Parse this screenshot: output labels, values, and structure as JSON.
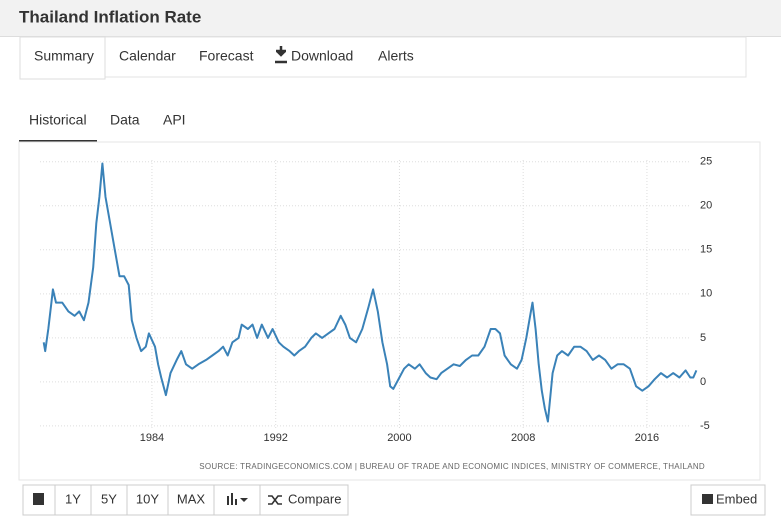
{
  "header": {
    "title": "Thailand Inflation Rate"
  },
  "tabs": [
    "Summary",
    "Calendar",
    "Forecast",
    "Download",
    "Alerts"
  ],
  "subtabs": [
    "Historical",
    "Data",
    "API"
  ],
  "chart_data": {
    "type": "line",
    "series": [
      {
        "name": "Thailand Inflation Rate",
        "color": "#3a82b8",
        "x": [
          1977.0,
          1977.1,
          1977.3,
          1977.5,
          1977.6,
          1977.8,
          1978.2,
          1978.6,
          1979.0,
          1979.3,
          1979.6,
          1979.9,
          1980.2,
          1980.4,
          1980.6,
          1980.8,
          1981.0,
          1981.2,
          1981.4,
          1981.6,
          1981.9,
          1982.2,
          1982.5,
          1982.7,
          1983.0,
          1983.3,
          1983.6,
          1983.8,
          1984.2,
          1984.4,
          1984.6,
          1984.9,
          1985.2,
          1985.6,
          1985.9,
          1986.2,
          1986.6,
          1987.0,
          1987.5,
          1987.9,
          1988.3,
          1988.6,
          1988.9,
          1989.2,
          1989.6,
          1989.8,
          1990.2,
          1990.5,
          1990.8,
          1991.1,
          1991.5,
          1991.8,
          1992.2,
          1992.5,
          1992.9,
          1993.2,
          1993.5,
          1993.9,
          1994.3,
          1994.6,
          1995.0,
          1995.4,
          1995.8,
          1996.2,
          1996.5,
          1996.8,
          1997.2,
          1997.6,
          1998.0,
          1998.3,
          1998.6,
          1998.9,
          1999.2,
          1999.4,
          1999.6,
          2000.0,
          2000.3,
          2000.6,
          2001.0,
          2001.3,
          2001.7,
          2002.0,
          2002.4,
          2002.7,
          2003.1,
          2003.5,
          2003.9,
          2004.3,
          2004.7,
          2005.1,
          2005.5,
          2005.9,
          2006.2,
          2006.5,
          2006.8,
          2007.2,
          2007.6,
          2007.9,
          2008.2,
          2008.5,
          2008.6,
          2008.8,
          2009.0,
          2009.2,
          2009.4,
          2009.6,
          2009.9,
          2010.2,
          2010.5,
          2010.9,
          2011.3,
          2011.7,
          2012.1,
          2012.5,
          2012.9,
          2013.3,
          2013.7,
          2014.1,
          2014.5,
          2014.9,
          2015.3,
          2015.7,
          2016.1,
          2016.5,
          2016.9,
          2017.3,
          2017.7,
          2018.1,
          2018.5,
          2018.8,
          2019.0,
          2019.2
        ],
        "values": [
          4.5,
          3.5,
          6,
          9,
          10.5,
          9,
          9,
          8,
          7.5,
          8,
          7,
          9,
          13,
          18,
          21,
          24.8,
          21,
          19,
          17,
          15,
          12,
          12,
          11,
          7,
          5,
          3.5,
          4,
          5.5,
          4,
          2,
          0.5,
          -1.5,
          1,
          2.5,
          3.5,
          2,
          1.5,
          2,
          2.5,
          3,
          3.5,
          4,
          3,
          4.5,
          5,
          6.5,
          6,
          6.5,
          5,
          6.5,
          5,
          6,
          4.5,
          4,
          3.5,
          3,
          3.5,
          4,
          5,
          5.5,
          5,
          5.5,
          6,
          7.5,
          6.5,
          5,
          4.5,
          6,
          8.5,
          10.5,
          8,
          4.5,
          2,
          -0.5,
          -0.8,
          0.5,
          1.5,
          2,
          1.5,
          2,
          1,
          0.5,
          0.3,
          1,
          1.5,
          2,
          1.8,
          2.5,
          3,
          3,
          4,
          6,
          6,
          5.5,
          3,
          2,
          1.5,
          2.5,
          5,
          8,
          9,
          6,
          2,
          -1,
          -3,
          -4.5,
          1,
          3,
          3.5,
          3,
          4,
          4,
          3.5,
          2.5,
          3,
          2.5,
          1.5,
          2,
          2,
          1.5,
          -0.5,
          -1,
          -0.5,
          0.3,
          1,
          0.5,
          1,
          0.5,
          1.3,
          0.5,
          0.5,
          1.3
        ]
      }
    ],
    "xlim": [
      1975.47,
      2019.43
    ],
    "xticks": [
      1984,
      1992,
      2000,
      2008,
      2016
    ],
    "ylim": [
      -6.6,
      26.9
    ],
    "yticks": [
      -5,
      0,
      5,
      10,
      15,
      20,
      25
    ],
    "grid": true,
    "source": "SOURCE: TRADINGECONOMICS.COM | BUREAU OF TRADE AND ECONOMIC INDICES, MINISTRY OF COMMERCE, THAILAND"
  },
  "buttons": [
    "1Y",
    "5Y",
    "10Y",
    "MAX",
    "Compare",
    "Embed"
  ]
}
